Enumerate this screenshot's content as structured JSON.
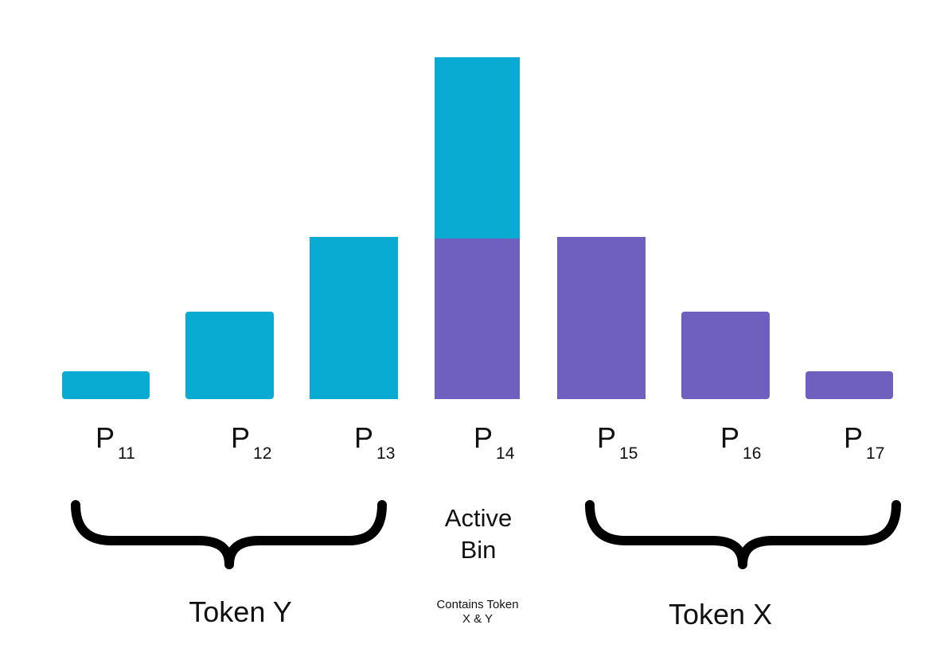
{
  "bins": [
    {
      "letter": "P",
      "sub": "11"
    },
    {
      "letter": "P",
      "sub": "12"
    },
    {
      "letter": "P",
      "sub": "13"
    },
    {
      "letter": "P",
      "sub": "14"
    },
    {
      "letter": "P",
      "sub": "15"
    },
    {
      "letter": "P",
      "sub": "16"
    },
    {
      "letter": "P",
      "sub": "17"
    }
  ],
  "groups": {
    "left": "Token Y",
    "center": {
      "title_lines": [
        "Active",
        "Bin"
      ],
      "note_lines": [
        "Contains Token",
        "X & Y"
      ]
    },
    "right": "Token X"
  }
}
